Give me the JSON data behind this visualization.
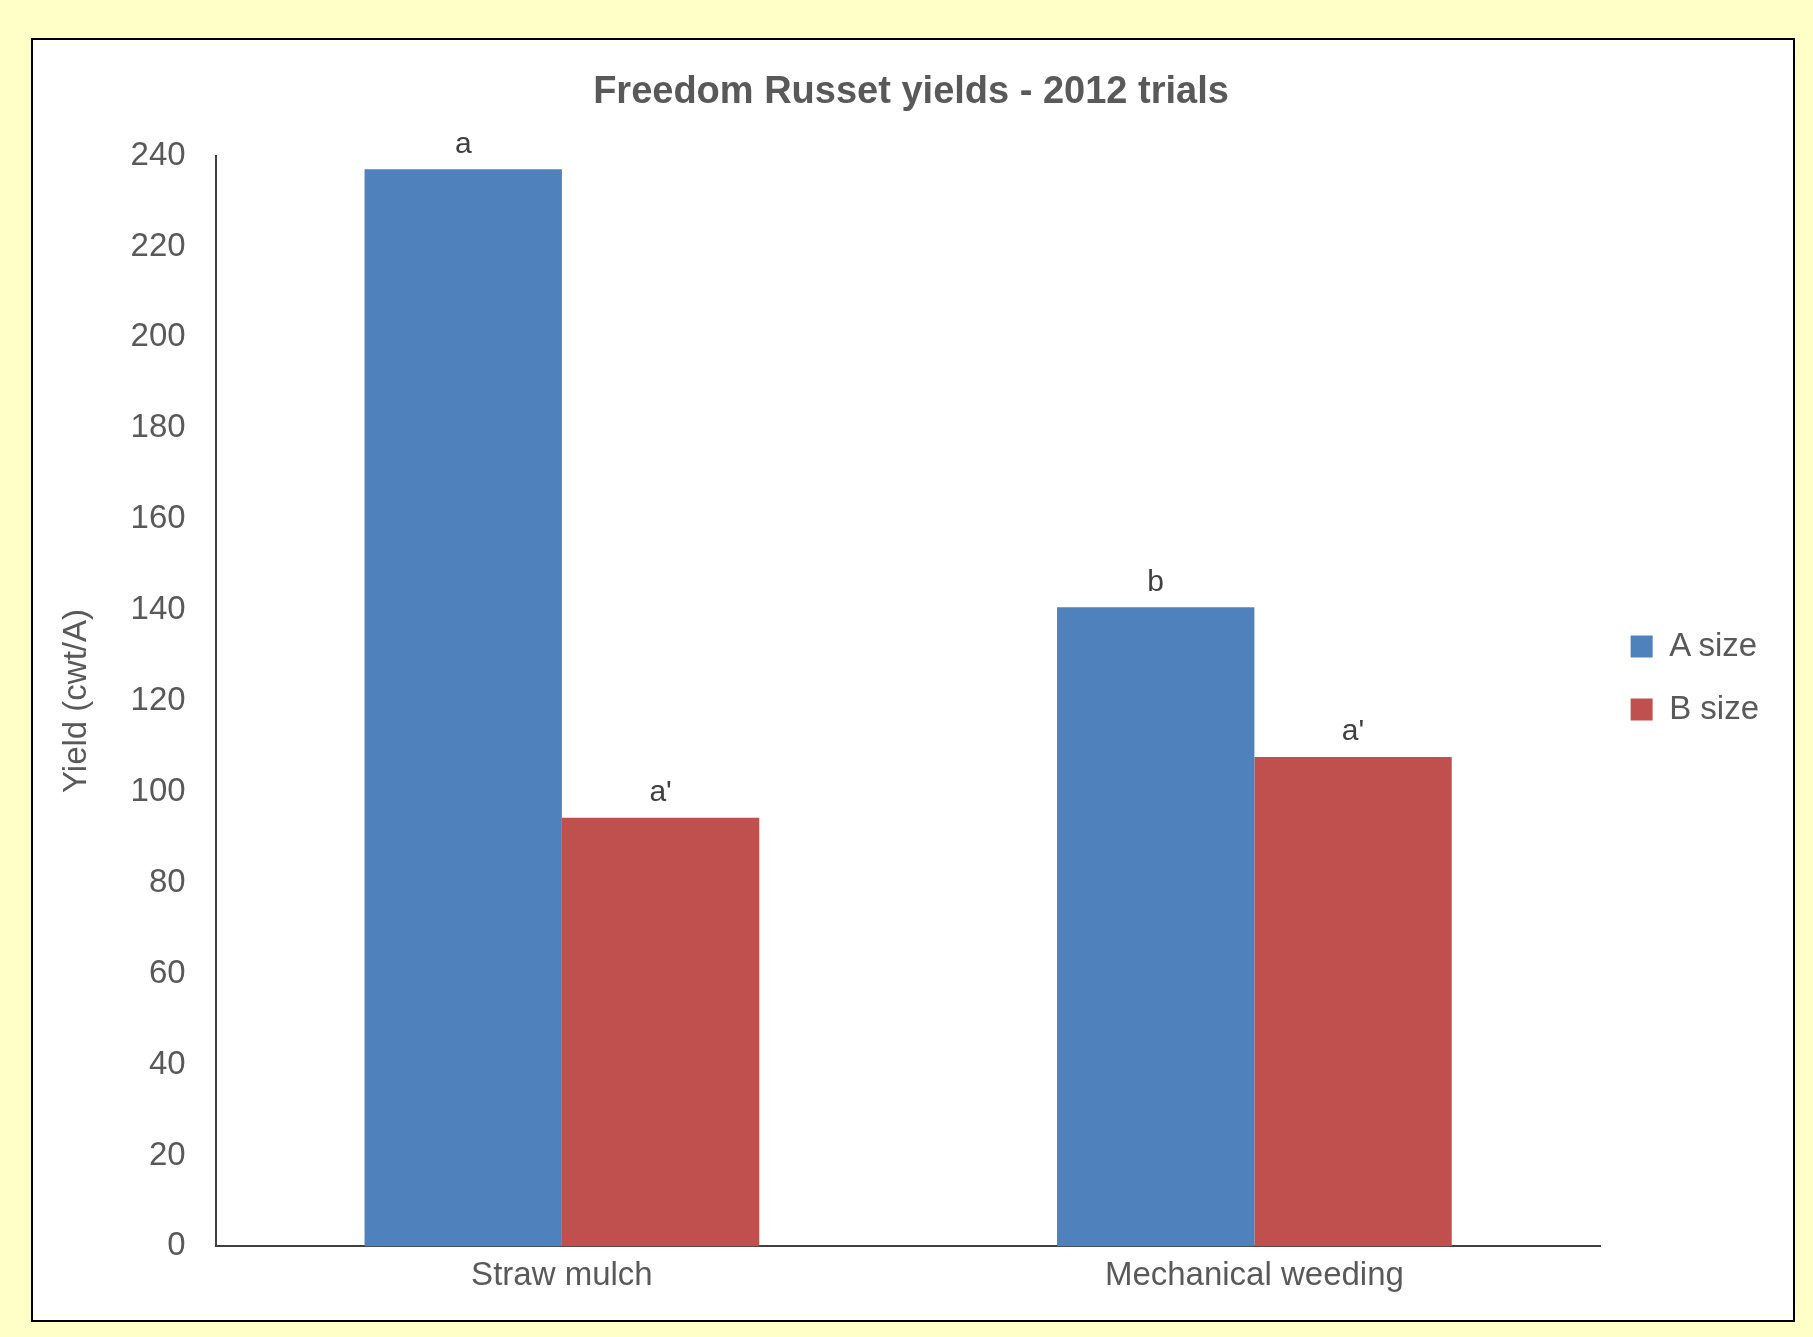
{
  "chart_data": {
    "type": "bar",
    "title": "Freedom Russet yields - 2012 trials",
    "ylabel": "Yield (cwt/A)",
    "categories": [
      "Straw mulch",
      "Mechanical weeding"
    ],
    "series": [
      {
        "name": "A size",
        "color": "#4f81bd",
        "values": [
          237,
          140.6
        ]
      },
      {
        "name": "B size",
        "color": "#c0504d",
        "values": [
          94.3,
          107.7
        ]
      }
    ],
    "ylim": [
      0,
      240
    ],
    "yticks": [
      0,
      20,
      40,
      60,
      80,
      100,
      120,
      140,
      160,
      180,
      200,
      220,
      240
    ],
    "grid": false,
    "legend": "right",
    "annotations": [
      "a",
      "a'",
      "b",
      "a'"
    ]
  }
}
